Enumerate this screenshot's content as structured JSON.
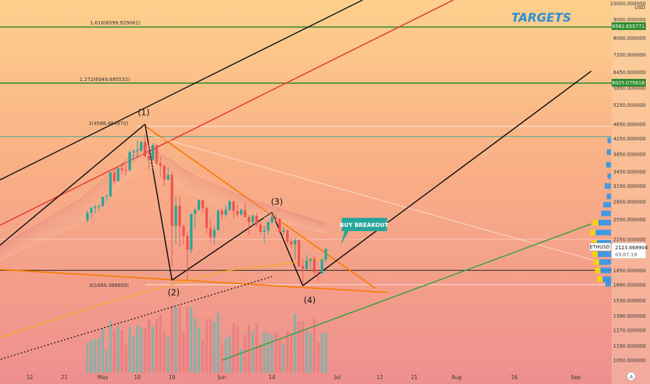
{
  "header": {
    "currency": "USD"
  },
  "targets_label": "TARGETS",
  "symbol_tag": "ETHUSD",
  "price_tag": {
    "value": "2123.668904",
    "countdown": "03:07:19"
  },
  "target_lines": [
    {
      "fib_label": "1.618(8599.929061)",
      "price_label": "8582.655771",
      "price": 8582.655771
    },
    {
      "fib_label": "1.272(6049.895532)",
      "price_label": "6025.075618",
      "price": 6025.075618
    }
  ],
  "fib_levels": [
    {
      "label": "1(4588.484970)",
      "price": 4588.48497
    },
    {
      "label": "0(1660.366659)",
      "price": 1660.366659
    }
  ],
  "wave_labels": [
    "(1)",
    "(2)",
    "(3)",
    "(4)"
  ],
  "callout": {
    "text": "BUY BREAKOUT"
  },
  "y_axis_ticks": [
    "10000.000000",
    "9000.000000",
    "8000.000000",
    "7200.000000",
    "6450.000000",
    "5850.000000",
    "5250.000000",
    "4650.000000",
    "4250.000000",
    "3850.000000",
    "3450.000000",
    "3150.000000",
    "2850.000000",
    "2550.000000",
    "2250.000000",
    "1850.000000",
    "1690.000000",
    "1530.000000",
    "1390.000000",
    "1270.000000",
    "1150.000000",
    "1050.000000"
  ],
  "x_axis_ticks": [
    "12",
    "21",
    "May",
    "10",
    "19",
    "Jun",
    "14",
    "Jul",
    "12",
    "21",
    "Aug",
    "16",
    "Sep"
  ],
  "tv_logo": "A",
  "colors": {
    "target_green": "#2e8b2e",
    "up": "#26a69a",
    "down": "#ef5350",
    "fib_orange": "#f57c00",
    "trend_red": "#e53935",
    "trend_green": "#43a047",
    "label_blue": "#2a8fd8"
  },
  "chart_data": {
    "type": "candlestick",
    "symbol": "ETHUSD",
    "scale": "log",
    "ylim": [
      1050,
      10000
    ],
    "x_domain": [
      "2021-04-01",
      "2021-09-05"
    ],
    "current_price": 2123.668904,
    "horizontal_levels": [
      8582.655771,
      6025.075618,
      4588.48497,
      4300,
      2250,
      1850,
      1690,
      1660.366659
    ],
    "volume_shown": true,
    "candles": [
      {
        "date": "2021-04-27",
        "open": 2540,
        "high": 2700,
        "low": 2500,
        "close": 2660
      },
      {
        "date": "2021-04-28",
        "open": 2660,
        "high": 2760,
        "low": 2580,
        "close": 2740
      },
      {
        "date": "2021-04-29",
        "open": 2740,
        "high": 2800,
        "low": 2650,
        "close": 2760
      },
      {
        "date": "2021-04-30",
        "open": 2760,
        "high": 2800,
        "low": 2700,
        "close": 2780
      },
      {
        "date": "2021-05-01",
        "open": 2780,
        "high": 2950,
        "low": 2760,
        "close": 2940
      },
      {
        "date": "2021-05-02",
        "open": 2940,
        "high": 2990,
        "low": 2860,
        "close": 2950
      },
      {
        "date": "2021-05-03",
        "open": 2950,
        "high": 3450,
        "low": 2940,
        "close": 3430
      },
      {
        "date": "2021-05-04",
        "open": 3430,
        "high": 3530,
        "low": 3200,
        "close": 3250
      },
      {
        "date": "2021-05-05",
        "open": 3250,
        "high": 3560,
        "low": 3240,
        "close": 3520
      },
      {
        "date": "2021-05-06",
        "open": 3520,
        "high": 3600,
        "low": 3400,
        "close": 3490
      },
      {
        "date": "2021-05-07",
        "open": 3490,
        "high": 3600,
        "low": 3370,
        "close": 3480
      },
      {
        "date": "2021-05-08",
        "open": 3480,
        "high": 3950,
        "low": 3460,
        "close": 3900
      },
      {
        "date": "2021-05-09",
        "open": 3900,
        "high": 3970,
        "low": 3700,
        "close": 3930
      },
      {
        "date": "2021-05-10",
        "open": 3930,
        "high": 4200,
        "low": 3800,
        "close": 3950
      },
      {
        "date": "2021-05-11",
        "open": 3950,
        "high": 4180,
        "low": 3900,
        "close": 4160
      },
      {
        "date": "2021-05-12",
        "open": 4160,
        "high": 4360,
        "low": 3780,
        "close": 3800
      },
      {
        "date": "2021-05-13",
        "open": 3800,
        "high": 4150,
        "low": 3500,
        "close": 3720
      },
      {
        "date": "2021-05-14",
        "open": 3720,
        "high": 4130,
        "low": 3680,
        "close": 4080
      },
      {
        "date": "2021-05-15",
        "open": 4080,
        "high": 4100,
        "low": 3600,
        "close": 3640
      },
      {
        "date": "2021-05-16",
        "open": 3640,
        "high": 3800,
        "low": 3330,
        "close": 3580
      },
      {
        "date": "2021-05-17",
        "open": 3580,
        "high": 3600,
        "low": 3150,
        "close": 3280
      },
      {
        "date": "2021-05-18",
        "open": 3280,
        "high": 3550,
        "low": 3260,
        "close": 3380
      },
      {
        "date": "2021-05-19",
        "open": 3380,
        "high": 3440,
        "low": 1900,
        "close": 2450
      },
      {
        "date": "2021-05-20",
        "open": 2450,
        "high": 2950,
        "low": 2180,
        "close": 2780
      },
      {
        "date": "2021-05-21",
        "open": 2780,
        "high": 2940,
        "low": 2150,
        "close": 2440
      },
      {
        "date": "2021-05-22",
        "open": 2440,
        "high": 2480,
        "low": 2180,
        "close": 2300
      },
      {
        "date": "2021-05-23",
        "open": 2300,
        "high": 2360,
        "low": 1730,
        "close": 2110
      },
      {
        "date": "2021-05-24",
        "open": 2110,
        "high": 2650,
        "low": 2060,
        "close": 2640
      },
      {
        "date": "2021-05-25",
        "open": 2640,
        "high": 2750,
        "low": 2410,
        "close": 2710
      },
      {
        "date": "2021-05-26",
        "open": 2710,
        "high": 2900,
        "low": 2700,
        "close": 2880
      },
      {
        "date": "2021-05-27",
        "open": 2880,
        "high": 2890,
        "low": 2650,
        "close": 2740
      },
      {
        "date": "2021-05-28",
        "open": 2740,
        "high": 2760,
        "low": 2330,
        "close": 2420
      },
      {
        "date": "2021-05-29",
        "open": 2420,
        "high": 2560,
        "low": 2200,
        "close": 2280
      },
      {
        "date": "2021-05-30",
        "open": 2280,
        "high": 2450,
        "low": 2180,
        "close": 2390
      },
      {
        "date": "2021-05-31",
        "open": 2390,
        "high": 2720,
        "low": 2370,
        "close": 2700
      },
      {
        "date": "2021-06-01",
        "open": 2700,
        "high": 2730,
        "low": 2550,
        "close": 2630
      },
      {
        "date": "2021-06-02",
        "open": 2630,
        "high": 2800,
        "low": 2590,
        "close": 2710
      },
      {
        "date": "2021-06-03",
        "open": 2710,
        "high": 2890,
        "low": 2690,
        "close": 2860
      },
      {
        "date": "2021-06-04",
        "open": 2860,
        "high": 2870,
        "low": 2570,
        "close": 2690
      },
      {
        "date": "2021-06-05",
        "open": 2690,
        "high": 2810,
        "low": 2590,
        "close": 2630
      },
      {
        "date": "2021-06-06",
        "open": 2630,
        "high": 2740,
        "low": 2610,
        "close": 2710
      },
      {
        "date": "2021-06-07",
        "open": 2710,
        "high": 2840,
        "low": 2580,
        "close": 2590
      },
      {
        "date": "2021-06-08",
        "open": 2590,
        "high": 2620,
        "low": 2320,
        "close": 2510
      },
      {
        "date": "2021-06-09",
        "open": 2510,
        "high": 2640,
        "low": 2450,
        "close": 2610
      },
      {
        "date": "2021-06-10",
        "open": 2610,
        "high": 2660,
        "low": 2430,
        "close": 2470
      },
      {
        "date": "2021-06-11",
        "open": 2470,
        "high": 2490,
        "low": 2320,
        "close": 2360
      },
      {
        "date": "2021-06-12",
        "open": 2360,
        "high": 2450,
        "low": 2200,
        "close": 2380
      },
      {
        "date": "2021-06-13",
        "open": 2380,
        "high": 2520,
        "low": 2320,
        "close": 2510
      },
      {
        "date": "2021-06-14",
        "open": 2510,
        "high": 2620,
        "low": 2480,
        "close": 2590
      },
      {
        "date": "2021-06-15",
        "open": 2590,
        "high": 2640,
        "low": 2520,
        "close": 2560
      },
      {
        "date": "2021-06-16",
        "open": 2560,
        "high": 2570,
        "low": 2330,
        "close": 2360
      },
      {
        "date": "2021-06-17",
        "open": 2360,
        "high": 2430,
        "low": 2310,
        "close": 2380
      },
      {
        "date": "2021-06-18",
        "open": 2380,
        "high": 2390,
        "low": 2180,
        "close": 2220
      },
      {
        "date": "2021-06-19",
        "open": 2220,
        "high": 2270,
        "low": 2130,
        "close": 2180
      },
      {
        "date": "2021-06-20",
        "open": 2180,
        "high": 2270,
        "low": 1980,
        "close": 2240
      },
      {
        "date": "2021-06-21",
        "open": 2240,
        "high": 2250,
        "low": 1880,
        "close": 1900
      },
      {
        "date": "2021-06-22",
        "open": 1900,
        "high": 2000,
        "low": 1700,
        "close": 1870
      },
      {
        "date": "2021-06-23",
        "open": 1870,
        "high": 2040,
        "low": 1860,
        "close": 1970
      },
      {
        "date": "2021-06-24",
        "open": 1970,
        "high": 2000,
        "low": 1880,
        "close": 1990
      },
      {
        "date": "2021-06-25",
        "open": 1990,
        "high": 2020,
        "low": 1800,
        "close": 1830
      },
      {
        "date": "2021-06-26",
        "open": 1830,
        "high": 1860,
        "low": 1720,
        "close": 1820
      },
      {
        "date": "2021-06-27",
        "open": 1820,
        "high": 1990,
        "low": 1800,
        "close": 1980
      },
      {
        "date": "2021-06-28",
        "open": 1980,
        "high": 2130,
        "low": 1950,
        "close": 2120
      }
    ]
  }
}
